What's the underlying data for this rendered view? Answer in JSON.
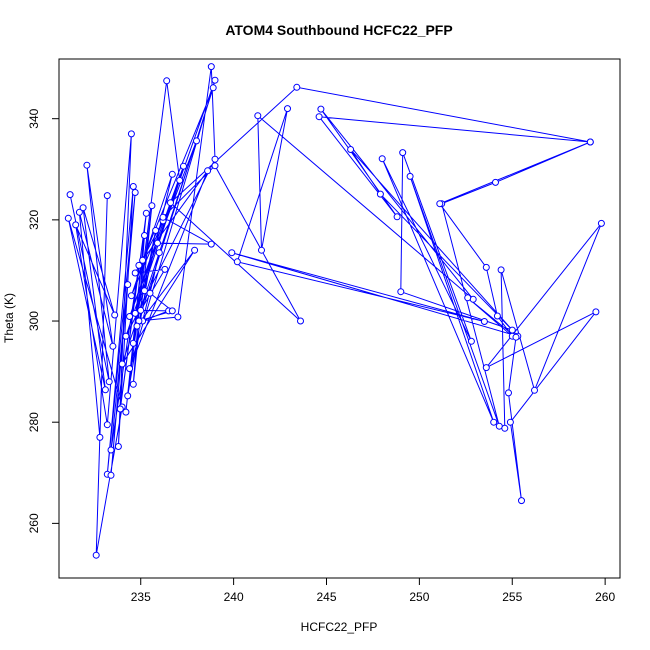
{
  "chart_data": {
    "type": "line",
    "title": "ATOM4 Southbound HCFC22_PFP",
    "xlabel": "HCFC22_PFP",
    "ylabel": "Theta (K)",
    "xlim": [
      230.6,
      260.8
    ],
    "ylim": [
      249.2,
      351.8
    ],
    "xticks": [
      235,
      240,
      245,
      250,
      255,
      260
    ],
    "yticks": [
      260,
      280,
      300,
      320,
      340
    ],
    "grid": false,
    "series_color": "#0000ff",
    "series": [
      {
        "marker": "open-circle",
        "points": [
          [
            231.2,
            325.0
          ],
          [
            233.3,
            288.0
          ],
          [
            232.1,
            330.8
          ],
          [
            233.5,
            295.0
          ],
          [
            231.7,
            321.5
          ],
          [
            232.8,
            277.0
          ],
          [
            233.2,
            324.8
          ],
          [
            232.6,
            253.7
          ],
          [
            234.0,
            283.0
          ],
          [
            231.1,
            320.3
          ],
          [
            233.1,
            286.4
          ],
          [
            231.9,
            322.4
          ],
          [
            233.6,
            301.2
          ],
          [
            231.5,
            319.0
          ],
          [
            233.2,
            279.5
          ],
          [
            234.5,
            337.0
          ],
          [
            233.8,
            275.2
          ],
          [
            234.6,
            326.6
          ],
          [
            233.2,
            269.7
          ],
          [
            234.7,
            325.4
          ],
          [
            233.4,
            269.5
          ],
          [
            234.3,
            307.2
          ],
          [
            233.4,
            274.5
          ],
          [
            234.9,
            311.0
          ],
          [
            233.9,
            282.6
          ],
          [
            235.3,
            321.3
          ],
          [
            234.2,
            282.0
          ],
          [
            235.2,
            316.9
          ],
          [
            234.6,
            287.5
          ],
          [
            235.6,
            322.8
          ],
          [
            234.3,
            285.2
          ],
          [
            235.8,
            317.9
          ],
          [
            234.6,
            295.6
          ],
          [
            236.4,
            347.5
          ],
          [
            237.1,
            327.8
          ],
          [
            234.7,
            301.5
          ],
          [
            235.2,
            306.0
          ],
          [
            236.7,
            329.0
          ],
          [
            234.5,
            305.0
          ],
          [
            236.2,
            319.8
          ],
          [
            234.7,
            309.5
          ],
          [
            236.3,
            310.2
          ],
          [
            235.0,
            302.1
          ],
          [
            236.5,
            302.0
          ],
          [
            235.1,
            300.0
          ],
          [
            236.0,
            313.5
          ],
          [
            235.5,
            305.5
          ],
          [
            236.7,
            302.0
          ],
          [
            234.9,
            300.0
          ],
          [
            237.0,
            300.8
          ],
          [
            238.8,
            350.3
          ],
          [
            239.0,
            332.0
          ],
          [
            234.2,
            297.0
          ],
          [
            237.3,
            330.6
          ],
          [
            234.4,
            300.9
          ],
          [
            238.0,
            335.6
          ],
          [
            234.0,
            291.5
          ],
          [
            237.9,
            314.0
          ],
          [
            234.8,
            299.0
          ],
          [
            238.9,
            346.1
          ],
          [
            235.1,
            312.0
          ],
          [
            238.6,
            329.7
          ],
          [
            234.4,
            290.6
          ],
          [
            239.0,
            347.6
          ],
          [
            235.9,
            315.4
          ],
          [
            238.8,
            315.2
          ],
          [
            236.2,
            320.5
          ],
          [
            239.0,
            330.7
          ],
          [
            243.6,
            300.0
          ],
          [
            236.6,
            323.4
          ],
          [
            243.4,
            346.2
          ],
          [
            259.2,
            335.4
          ],
          [
            244.6,
            340.4
          ],
          [
            248.8,
            320.6
          ],
          [
            244.7,
            341.9
          ],
          [
            252.9,
            304.3
          ],
          [
            241.3,
            340.6
          ],
          [
            241.5,
            314.0
          ],
          [
            242.9,
            342.0
          ],
          [
            240.2,
            311.7
          ],
          [
            253.5,
            299.9
          ],
          [
            239.9,
            313.5
          ],
          [
            255.3,
            297.0
          ],
          [
            246.3,
            333.9
          ],
          [
            247.9,
            325.1
          ],
          [
            255.0,
            298.2
          ],
          [
            249.0,
            305.8
          ],
          [
            249.1,
            333.3
          ],
          [
            252.8,
            296.0
          ],
          [
            248.0,
            332.1
          ],
          [
            254.0,
            280.0
          ],
          [
            249.5,
            328.6
          ],
          [
            254.3,
            279.2
          ],
          [
            251.2,
            323.2
          ],
          [
            254.1,
            327.4
          ],
          [
            259.2,
            335.4
          ],
          [
            251.1,
            323.2
          ],
          [
            253.6,
            310.6
          ],
          [
            254.2,
            301.0
          ],
          [
            255.0,
            297.0
          ],
          [
            252.6,
            304.6
          ],
          [
            255.2,
            296.8
          ],
          [
            254.8,
            285.8
          ],
          [
            255.5,
            264.5
          ],
          [
            254.9,
            280.0
          ],
          [
            259.5,
            301.8
          ],
          [
            253.6,
            290.8
          ],
          [
            259.8,
            319.3
          ],
          [
            256.2,
            286.3
          ],
          [
            254.4,
            310.1
          ],
          [
            254.6,
            278.8
          ]
        ]
      }
    ]
  }
}
